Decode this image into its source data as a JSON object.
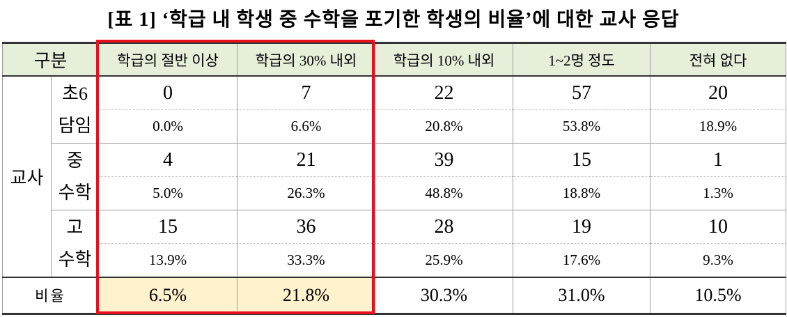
{
  "title": "[표 1] ‘학급 내 학생 중 수학을 포기한 학생의 비율’에 대한 교사 응답",
  "table": {
    "header": [
      "구분",
      "학급의 절반 이상",
      "학급의 30% 내외",
      "학급의 10% 내외",
      "1~2명 정도",
      "전혀 없다"
    ],
    "group": "교사",
    "rows": [
      {
        "label": [
          "초6",
          "담임"
        ],
        "counts": [
          "0",
          "7",
          "22",
          "57",
          "20"
        ],
        "percents": [
          "0.0%",
          "6.6%",
          "20.8%",
          "53.8%",
          "18.9%"
        ]
      },
      {
        "label": [
          "중",
          "수학"
        ],
        "counts": [
          "4",
          "21",
          "39",
          "15",
          "1"
        ],
        "percents": [
          "5.0%",
          "26.3%",
          "48.8%",
          "18.8%",
          "1.3%"
        ]
      },
      {
        "label": [
          "고",
          "수학"
        ],
        "counts": [
          "15",
          "36",
          "28",
          "19",
          "10"
        ],
        "percents": [
          "13.9%",
          "33.3%",
          "25.9%",
          "17.6%",
          "9.3%"
        ]
      }
    ],
    "total": {
      "label": "비율",
      "values": [
        "6.5%",
        "21.8%",
        "30.3%",
        "31.0%",
        "10.5%"
      ]
    }
  }
}
